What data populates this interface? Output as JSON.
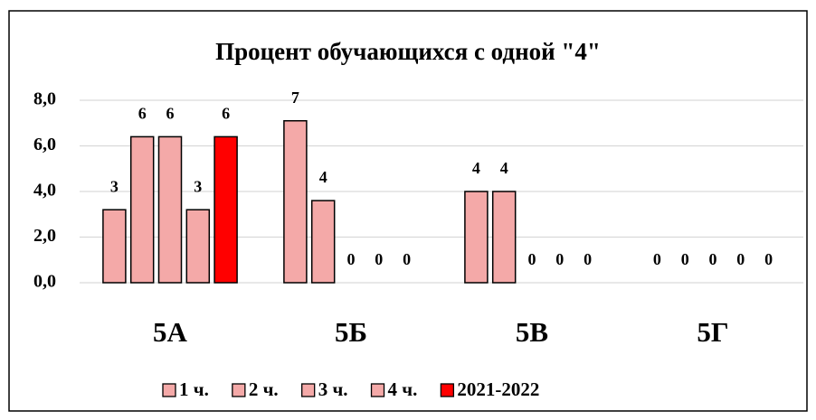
{
  "chart_data": {
    "type": "bar",
    "title": "Процент обучающихся с одной \"4\"",
    "categories": [
      "5А",
      "5Б",
      "5В",
      "5Г"
    ],
    "series": [
      {
        "name": "1 ч.",
        "color": "#f4a9a8",
        "values": [
          3.2,
          7.1,
          4.0,
          0
        ],
        "value_labels": [
          "3",
          "7",
          "4",
          "0"
        ]
      },
      {
        "name": "2 ч.",
        "color": "#f4a9a8",
        "values": [
          6.4,
          3.6,
          4.0,
          0
        ],
        "value_labels": [
          "6",
          "4",
          "4",
          "0"
        ]
      },
      {
        "name": "3 ч.",
        "color": "#f4a9a8",
        "values": [
          6.4,
          0,
          0,
          0
        ],
        "value_labels": [
          "6",
          "0",
          "0",
          "0"
        ]
      },
      {
        "name": "4 ч.",
        "color": "#f4a9a8",
        "values": [
          3.2,
          0,
          0,
          0
        ],
        "value_labels": [
          "3",
          "0",
          "0",
          "0"
        ]
      },
      {
        "name": "2021-2022",
        "color": "#ff0000",
        "values": [
          6.4,
          0,
          0,
          0
        ],
        "value_labels": [
          "6",
          "0",
          "0",
          "0"
        ]
      }
    ],
    "ylim": [
      0,
      8
    ],
    "yticks": [
      {
        "value": 0,
        "label": "0,0"
      },
      {
        "value": 2,
        "label": "2,0"
      },
      {
        "value": 4,
        "label": "4,0"
      },
      {
        "value": 6,
        "label": "6,0"
      },
      {
        "value": 8,
        "label": "8,0"
      }
    ],
    "grid": true,
    "legend": "bottom"
  }
}
